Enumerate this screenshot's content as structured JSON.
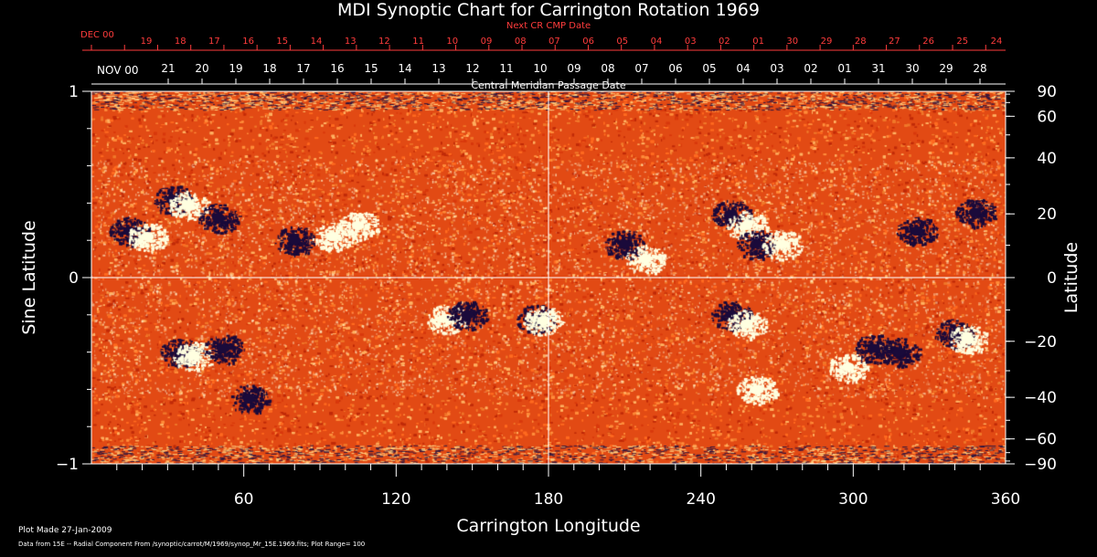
{
  "chart_data": {
    "type": "heatmap",
    "title": "MDI Synoptic Chart for Carrington Rotation 1969",
    "xlabel": "Carrington Longitude",
    "ylabel_left": "Sine Latitude",
    "ylabel_right": "Latitude",
    "xlim": [
      0,
      360
    ],
    "ylim": [
      -1,
      1
    ],
    "x_ticks": [
      "60",
      "120",
      "180",
      "240",
      "300",
      "360"
    ],
    "x_tick_values": [
      60,
      120,
      180,
      240,
      300,
      360
    ],
    "y_ticks_left": [
      "1",
      "0",
      "−1"
    ],
    "y_tick_values_left": [
      1,
      0,
      -1
    ],
    "y_ticks_right": [
      "90",
      "60",
      "40",
      "20",
      "0",
      "−20",
      "−40",
      "−60",
      "−90"
    ],
    "y_tick_values_right": [
      90,
      60,
      40,
      20,
      0,
      -20,
      -40,
      -60,
      -90
    ],
    "top_axis_red": {
      "label": "Next CR CMP Date",
      "start_label": "DEC 00",
      "days": [
        "19",
        "18",
        "17",
        "16",
        "15",
        "14",
        "13",
        "12",
        "11",
        "10",
        "09",
        "08",
        "07",
        "06",
        "05",
        "04",
        "03",
        "02",
        "01",
        "30",
        "29",
        "28",
        "27",
        "26",
        "25",
        "24"
      ]
    },
    "top_axis_white": {
      "label": "Central Meridian Passage Date",
      "start_label": "NOV 00",
      "days": [
        "21",
        "20",
        "19",
        "18",
        "17",
        "16",
        "15",
        "14",
        "13",
        "12",
        "11",
        "10",
        "09",
        "08",
        "07",
        "06",
        "05",
        "04",
        "03",
        "02",
        "01",
        "31",
        "30",
        "29",
        "28"
      ]
    },
    "colormap": {
      "background": "#e8501a",
      "positive": "#ffffe0",
      "negative": "#1a0a3a"
    },
    "plot_range": 100,
    "active_regions": [
      {
        "lon": 15,
        "sinlat": 0.25,
        "polarity": "negative"
      },
      {
        "lon": 22,
        "sinlat": 0.22,
        "polarity": "positive"
      },
      {
        "lon": 32,
        "sinlat": 0.42,
        "polarity": "negative"
      },
      {
        "lon": 38,
        "sinlat": 0.39,
        "polarity": "positive"
      },
      {
        "lon": 50,
        "sinlat": 0.32,
        "polarity": "negative"
      },
      {
        "lon": 80,
        "sinlat": 0.2,
        "polarity": "negative"
      },
      {
        "lon": 95,
        "sinlat": 0.22,
        "polarity": "positive"
      },
      {
        "lon": 105,
        "sinlat": 0.28,
        "polarity": "positive"
      },
      {
        "lon": 35,
        "sinlat": -0.4,
        "polarity": "negative"
      },
      {
        "lon": 40,
        "sinlat": -0.42,
        "polarity": "positive"
      },
      {
        "lon": 52,
        "sinlat": -0.38,
        "polarity": "negative"
      },
      {
        "lon": 62,
        "sinlat": -0.65,
        "polarity": "negative"
      },
      {
        "lon": 140,
        "sinlat": -0.22,
        "polarity": "positive"
      },
      {
        "lon": 148,
        "sinlat": -0.2,
        "polarity": "negative"
      },
      {
        "lon": 175,
        "sinlat": -0.22,
        "polarity": "negative"
      },
      {
        "lon": 178,
        "sinlat": -0.23,
        "polarity": "positive"
      },
      {
        "lon": 210,
        "sinlat": 0.18,
        "polarity": "negative"
      },
      {
        "lon": 218,
        "sinlat": 0.1,
        "polarity": "positive"
      },
      {
        "lon": 252,
        "sinlat": 0.34,
        "polarity": "negative"
      },
      {
        "lon": 258,
        "sinlat": 0.28,
        "polarity": "positive"
      },
      {
        "lon": 262,
        "sinlat": 0.18,
        "polarity": "negative"
      },
      {
        "lon": 272,
        "sinlat": 0.18,
        "polarity": "positive"
      },
      {
        "lon": 252,
        "sinlat": -0.2,
        "polarity": "negative"
      },
      {
        "lon": 258,
        "sinlat": -0.25,
        "polarity": "positive"
      },
      {
        "lon": 262,
        "sinlat": -0.6,
        "polarity": "positive"
      },
      {
        "lon": 298,
        "sinlat": -0.48,
        "polarity": "positive"
      },
      {
        "lon": 308,
        "sinlat": -0.38,
        "polarity": "negative"
      },
      {
        "lon": 318,
        "sinlat": -0.4,
        "polarity": "negative"
      },
      {
        "lon": 340,
        "sinlat": -0.3,
        "polarity": "negative"
      },
      {
        "lon": 345,
        "sinlat": -0.33,
        "polarity": "positive"
      },
      {
        "lon": 325,
        "sinlat": 0.25,
        "polarity": "negative"
      },
      {
        "lon": 348,
        "sinlat": 0.35,
        "polarity": "negative"
      }
    ]
  },
  "footer": {
    "plot_made": "Plot Made 27-Jan-2009",
    "data_source": "Data from 15E -- Radial Component From /synoptic/carrot/M/1969/synop_Mr_15E.1969.fits; Plot Range=   100"
  }
}
